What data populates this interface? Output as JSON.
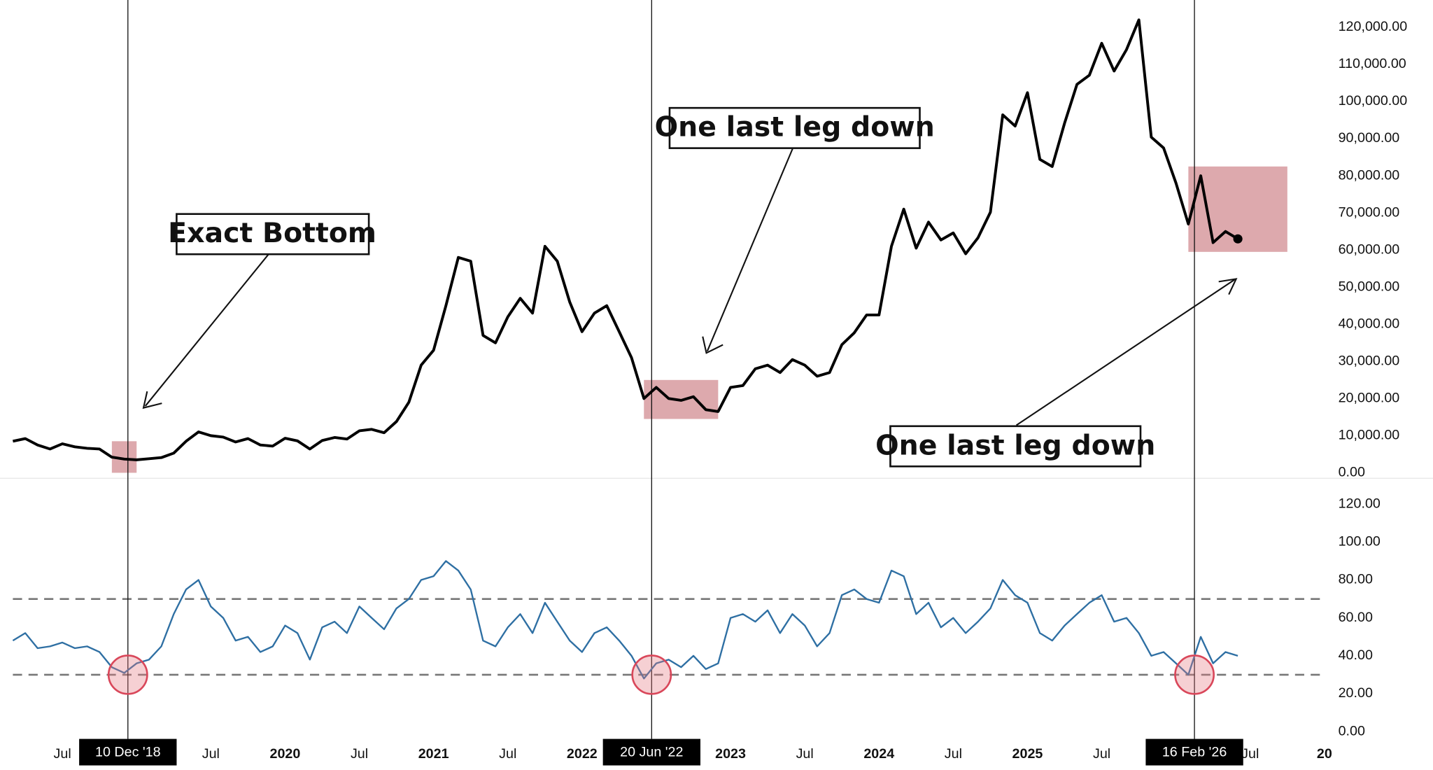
{
  "date_markers": [
    {
      "x": "2018-12-10",
      "label": "10 Dec '18"
    },
    {
      "x": "2022-06-20",
      "label": "20 Jun '22"
    },
    {
      "x": "2026-02-16",
      "label": "16 Feb '26"
    }
  ],
  "chart_data": [
    {
      "type": "line",
      "xlim": [
        "2018-03",
        "2027-01"
      ],
      "x": [
        "2018-03",
        "2018-04",
        "2018-05",
        "2018-06",
        "2018-07",
        "2018-08",
        "2018-09",
        "2018-10",
        "2018-11",
        "2018-12",
        "2019-01",
        "2019-02",
        "2019-03",
        "2019-04",
        "2019-05",
        "2019-06",
        "2019-07",
        "2019-08",
        "2019-09",
        "2019-10",
        "2019-11",
        "2019-12",
        "2020-01",
        "2020-02",
        "2020-03",
        "2020-04",
        "2020-05",
        "2020-06",
        "2020-07",
        "2020-08",
        "2020-09",
        "2020-10",
        "2020-11",
        "2020-12",
        "2021-01",
        "2021-02",
        "2021-03",
        "2021-04",
        "2021-05",
        "2021-06",
        "2021-07",
        "2021-08",
        "2021-09",
        "2021-10",
        "2021-11",
        "2021-12",
        "2022-01",
        "2022-02",
        "2022-03",
        "2022-04",
        "2022-05",
        "2022-06",
        "2022-07",
        "2022-08",
        "2022-09",
        "2022-10",
        "2022-11",
        "2022-12",
        "2023-01",
        "2023-02",
        "2023-03",
        "2023-04",
        "2023-05",
        "2023-06",
        "2023-07",
        "2023-08",
        "2023-09",
        "2023-10",
        "2023-11",
        "2023-12",
        "2024-01",
        "2024-02",
        "2024-03",
        "2024-04",
        "2024-05",
        "2024-06",
        "2024-07",
        "2024-08",
        "2024-09",
        "2024-10",
        "2024-11",
        "2024-12",
        "2025-01",
        "2025-02",
        "2025-03",
        "2025-04",
        "2025-05",
        "2025-06",
        "2025-07",
        "2025-08",
        "2025-09",
        "2025-10",
        "2025-11",
        "2025-12",
        "2026-01",
        "2026-02",
        "2026-03",
        "2026-04",
        "2026-05",
        "2026-06"
      ],
      "values": [
        8500,
        9200,
        7500,
        6400,
        7800,
        7000,
        6600,
        6400,
        4200,
        3700,
        3500,
        3800,
        4100,
        5300,
        8500,
        11000,
        10000,
        9600,
        8300,
        9200,
        7500,
        7200,
        9300,
        8600,
        6400,
        8700,
        9500,
        9100,
        11300,
        11700,
        10800,
        13800,
        19000,
        29000,
        33000,
        45000,
        58000,
        57000,
        37000,
        35000,
        42000,
        47000,
        43000,
        61000,
        57000,
        46000,
        38000,
        43000,
        45000,
        38000,
        31000,
        20000,
        23000,
        20000,
        19500,
        20500,
        17000,
        16500,
        23000,
        23500,
        28000,
        29000,
        27000,
        30500,
        29000,
        26000,
        27000,
        34500,
        37700,
        42500,
        42500,
        61000,
        71000,
        60500,
        67500,
        62700,
        64600,
        59000,
        63300,
        70200,
        96400,
        93400,
        102400,
        84400,
        82500,
        94200,
        104600,
        107100,
        115700,
        108200,
        114000,
        122000,
        90400,
        87500,
        78000,
        67000,
        80000,
        62000,
        65000,
        63000
      ],
      "color": "#000000",
      "ylim": [
        0,
        125000
      ],
      "yticks": [
        {
          "value": 0,
          "label": "0.00"
        },
        {
          "value": 10000,
          "label": "10,000.00"
        },
        {
          "value": 20000,
          "label": "20,000.00"
        },
        {
          "value": 30000,
          "label": "30,000.00"
        },
        {
          "value": 40000,
          "label": "40,000.00"
        },
        {
          "value": 50000,
          "label": "50,000.00"
        },
        {
          "value": 60000,
          "label": "60,000.00"
        },
        {
          "value": 70000,
          "label": "70,000.00"
        },
        {
          "value": 80000,
          "label": "80,000.00"
        },
        {
          "value": 90000,
          "label": "90,000.00"
        },
        {
          "value": 100000,
          "label": "100,000.00"
        },
        {
          "value": 110000,
          "label": "110,000.00"
        },
        {
          "value": 120000,
          "label": "120,000.00"
        }
      ],
      "highlight_color": "#d9a0a4",
      "highlights": [
        {
          "x": [
            "2018-11",
            "2019-01"
          ],
          "y": [
            0,
            8500
          ]
        },
        {
          "x": [
            "2022-06",
            "2022-12"
          ],
          "y": [
            14500,
            25000
          ]
        },
        {
          "x": [
            "2026-02",
            "2026-10"
          ],
          "y": [
            59500,
            82500
          ]
        }
      ],
      "annotations": [
        "Exact Bottom",
        "One last leg down",
        "One last leg down"
      ]
    },
    {
      "type": "line",
      "xlim": [
        "2018-03",
        "2027-01"
      ],
      "x": [
        "2018-03",
        "2018-04",
        "2018-05",
        "2018-06",
        "2018-07",
        "2018-08",
        "2018-09",
        "2018-10",
        "2018-11",
        "2018-12",
        "2019-01",
        "2019-02",
        "2019-03",
        "2019-04",
        "2019-05",
        "2019-06",
        "2019-07",
        "2019-08",
        "2019-09",
        "2019-10",
        "2019-11",
        "2019-12",
        "2020-01",
        "2020-02",
        "2020-03",
        "2020-04",
        "2020-05",
        "2020-06",
        "2020-07",
        "2020-08",
        "2020-09",
        "2020-10",
        "2020-11",
        "2020-12",
        "2021-01",
        "2021-02",
        "2021-03",
        "2021-04",
        "2021-05",
        "2021-06",
        "2021-07",
        "2021-08",
        "2021-09",
        "2021-10",
        "2021-11",
        "2021-12",
        "2022-01",
        "2022-02",
        "2022-03",
        "2022-04",
        "2022-05",
        "2022-06",
        "2022-07",
        "2022-08",
        "2022-09",
        "2022-10",
        "2022-11",
        "2022-12",
        "2023-01",
        "2023-02",
        "2023-03",
        "2023-04",
        "2023-05",
        "2023-06",
        "2023-07",
        "2023-08",
        "2023-09",
        "2023-10",
        "2023-11",
        "2023-12",
        "2024-01",
        "2024-02",
        "2024-03",
        "2024-04",
        "2024-05",
        "2024-06",
        "2024-07",
        "2024-08",
        "2024-09",
        "2024-10",
        "2024-11",
        "2024-12",
        "2025-01",
        "2025-02",
        "2025-03",
        "2025-04",
        "2025-05",
        "2025-06",
        "2025-07",
        "2025-08",
        "2025-09",
        "2025-10",
        "2025-11",
        "2025-12",
        "2026-01",
        "2026-02",
        "2026-03",
        "2026-04",
        "2026-05",
        "2026-06"
      ],
      "values": [
        48,
        52,
        44,
        45,
        47,
        44,
        45,
        42,
        34,
        31,
        36,
        38,
        45,
        62,
        75,
        80,
        66,
        60,
        48,
        50,
        42,
        45,
        56,
        52,
        38,
        55,
        58,
        52,
        66,
        60,
        54,
        65,
        70,
        80,
        82,
        90,
        85,
        75,
        48,
        45,
        55,
        62,
        52,
        68,
        58,
        48,
        42,
        52,
        55,
        48,
        40,
        28,
        36,
        38,
        34,
        40,
        33,
        36,
        60,
        62,
        58,
        64,
        52,
        62,
        56,
        45,
        52,
        72,
        75,
        70,
        68,
        85,
        82,
        62,
        68,
        55,
        60,
        52,
        58,
        65,
        80,
        72,
        68,
        52,
        48,
        56,
        62,
        68,
        72,
        58,
        60,
        52,
        40,
        42,
        36,
        30,
        50,
        36,
        42,
        40
      ],
      "color": "#2e6fa3",
      "ylim": [
        0,
        125
      ],
      "yticks": [
        {
          "value": 0,
          "label": "0.00"
        },
        {
          "value": 20,
          "label": "20.00"
        },
        {
          "value": 40,
          "label": "40.00"
        },
        {
          "value": 60,
          "label": "60.00"
        },
        {
          "value": 80,
          "label": "80.00"
        },
        {
          "value": 100,
          "label": "100.00"
        },
        {
          "value": 120,
          "label": "120.00"
        }
      ],
      "reference_lines": [
        70,
        30
      ],
      "circles": [
        {
          "x": "2018-12-10",
          "y": 30
        },
        {
          "x": "2022-06-20",
          "y": 30
        },
        {
          "x": "2026-02-16",
          "y": 30
        }
      ],
      "xticks": [
        {
          "value": "2018-07",
          "label": "Jul"
        },
        {
          "value": "2019-07",
          "label": "Jul"
        },
        {
          "value": "2020-01",
          "label": "2020"
        },
        {
          "value": "2020-07",
          "label": "Jul"
        },
        {
          "value": "2021-01",
          "label": "2021"
        },
        {
          "value": "2021-07",
          "label": "Jul"
        },
        {
          "value": "2022-01",
          "label": "2022"
        },
        {
          "value": "2023-01",
          "label": "2023"
        },
        {
          "value": "2023-07",
          "label": "Jul"
        },
        {
          "value": "2024-01",
          "label": "2024"
        },
        {
          "value": "2024-07",
          "label": "Jul"
        },
        {
          "value": "2025-01",
          "label": "2025"
        },
        {
          "value": "2025-07",
          "label": "Jul"
        },
        {
          "value": "2026-07",
          "label": "Jul"
        },
        {
          "value": "2027-01",
          "label": "20"
        }
      ]
    }
  ]
}
